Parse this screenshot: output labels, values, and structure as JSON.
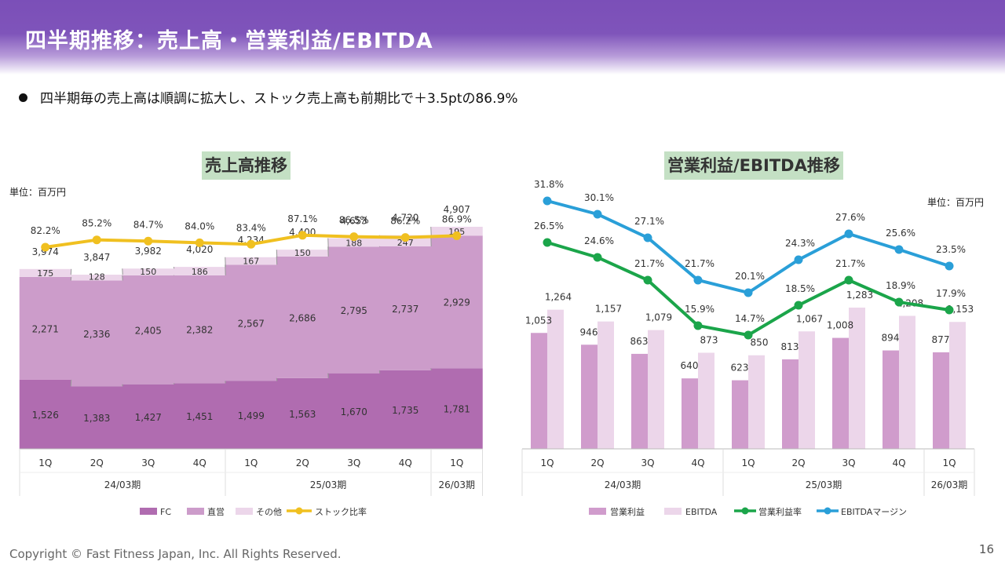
{
  "header": {
    "title": "四半期推移：売上高・営業利益/EBITDA"
  },
  "bullet": "四半期毎の売上高は順調に拡大し、ストック売上高も前期比で＋3.5ptの86.9%",
  "footer": {
    "copyright": "Copyright © Fast Fitness Japan, Inc. All Rights Reserved.",
    "page": "16"
  },
  "colors": {
    "fc": "#b06cb0",
    "direct": "#cc9cca",
    "other": "#ecd6ea",
    "stock": "#f0c020",
    "op": "#d09ccc",
    "ebitda": "#ecd6ea",
    "op_rate": "#1ba54a",
    "ebitda_margin": "#2a9fd8"
  },
  "chart_data": [
    {
      "type": "bar",
      "stacked": true,
      "title": "売上高推移",
      "unit": "単位：百万円",
      "categories": [
        "1Q",
        "2Q",
        "3Q",
        "4Q",
        "1Q",
        "2Q",
        "3Q",
        "4Q",
        "1Q"
      ],
      "groups": [
        {
          "label": "24/03期",
          "count": 4
        },
        {
          "label": "25/03期",
          "count": 4
        },
        {
          "label": "26/03期",
          "count": 1
        }
      ],
      "series": [
        {
          "name": "FC",
          "values": [
            1526,
            1383,
            1427,
            1451,
            1499,
            1563,
            1670,
            1735,
            1781
          ]
        },
        {
          "name": "直営",
          "values": [
            2271,
            2336,
            2405,
            2382,
            2567,
            2686,
            2795,
            2737,
            2929
          ]
        },
        {
          "name": "その他",
          "values": [
            175,
            128,
            150,
            186,
            167,
            150,
            188,
            247,
            195
          ]
        }
      ],
      "totals": [
        "3,974",
        "3,847",
        "3,982",
        "4,020",
        "4,234",
        "4,400",
        "4,653",
        "4,720",
        "4,907"
      ],
      "line": {
        "name": "ストック比率",
        "values": [
          82.2,
          85.2,
          84.7,
          84.0,
          83.4,
          87.1,
          86.5,
          86.2,
          86.9
        ],
        "labels": [
          "82.2%",
          "85.2%",
          "84.7%",
          "84.0%",
          "83.4%",
          "87.1%",
          "86.5%",
          "86.2%",
          "86.9%"
        ]
      },
      "legend": [
        "FC",
        "直営",
        "その他",
        "ストック比率"
      ],
      "legend_position": "bottom"
    },
    {
      "type": "bar",
      "title": "営業利益/EBITDA推移",
      "unit": "単位：百万円",
      "categories": [
        "1Q",
        "2Q",
        "3Q",
        "4Q",
        "1Q",
        "2Q",
        "3Q",
        "4Q",
        "1Q"
      ],
      "groups": [
        {
          "label": "24/03期",
          "count": 4
        },
        {
          "label": "25/03期",
          "count": 4
        },
        {
          "label": "26/03期",
          "count": 1
        }
      ],
      "series": [
        {
          "name": "営業利益",
          "values": [
            1053,
            946,
            863,
            640,
            623,
            813,
            1008,
            894,
            877
          ],
          "labels": [
            "1,053",
            "946",
            "863",
            "640",
            "623",
            "813",
            "1,008",
            "894",
            "877"
          ]
        },
        {
          "name": "EBITDA",
          "values": [
            1264,
            1157,
            1079,
            873,
            850,
            1067,
            1283,
            1208,
            1153
          ],
          "labels": [
            "1,264",
            "1,157",
            "1,079",
            "873",
            "850",
            "1,067",
            "1,283",
            "1,208",
            "1,153"
          ]
        }
      ],
      "lines": [
        {
          "name": "営業利益率",
          "values": [
            26.5,
            24.6,
            21.7,
            15.9,
            14.7,
            18.5,
            21.7,
            18.9,
            17.9
          ],
          "labels": [
            "26.5%",
            "24.6%",
            "21.7%",
            "15.9%",
            "14.7%",
            "18.5%",
            "21.7%",
            "18.9%",
            "17.9%"
          ]
        },
        {
          "name": "EBITDAマージン",
          "values": [
            31.8,
            30.1,
            27.1,
            21.7,
            20.1,
            24.3,
            27.6,
            25.6,
            23.5
          ],
          "labels": [
            "31.8%",
            "30.1%",
            "27.1%",
            "21.7%",
            "20.1%",
            "24.3%",
            "27.6%",
            "25.6%",
            "23.5%"
          ]
        }
      ],
      "legend": [
        "営業利益",
        "EBITDA",
        "営業利益率",
        "EBITDAマージン"
      ],
      "legend_position": "bottom"
    }
  ]
}
